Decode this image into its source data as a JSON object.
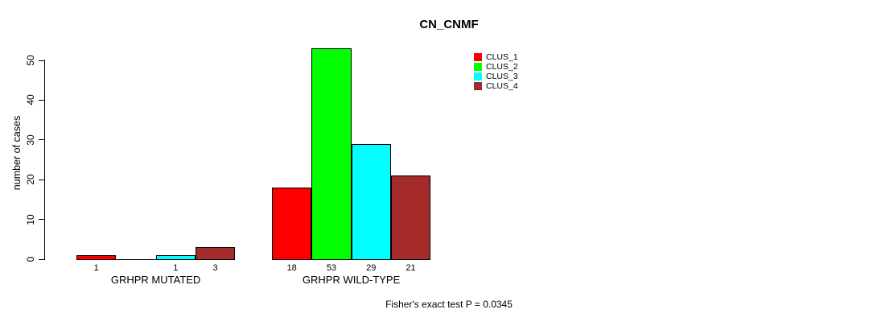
{
  "title": "CN_CNMF",
  "footer_note": "Fisher's exact test P = 0.0345",
  "colors": {
    "background": "#ffffff",
    "axis": "#000000",
    "text": "#000000"
  },
  "chart_data": {
    "type": "bar",
    "title": "CN_CNMF",
    "xlabel": "",
    "ylabel": "number of cases",
    "ylim": [
      0,
      50
    ],
    "yticks": [
      0,
      10,
      20,
      30,
      40,
      50
    ],
    "grid": false,
    "legend_position": "top-right",
    "categories": [
      "GRHPR MUTATED",
      "GRHPR WILD-TYPE"
    ],
    "series": [
      {
        "name": "CLUS_1",
        "color": "#ff0000",
        "values": [
          1,
          18
        ]
      },
      {
        "name": "CLUS_2",
        "color": "#00ff00",
        "values": [
          0,
          53
        ]
      },
      {
        "name": "CLUS_3",
        "color": "#00ffff",
        "values": [
          1,
          29
        ]
      },
      {
        "name": "CLUS_4",
        "color": "#a52a2a",
        "values": [
          3,
          21
        ]
      }
    ],
    "bar_labels": [
      [
        "1",
        "",
        "1",
        "3"
      ],
      [
        "18",
        "53",
        "29",
        "21"
      ]
    ],
    "annotation": "Fisher's exact test P = 0.0345"
  }
}
